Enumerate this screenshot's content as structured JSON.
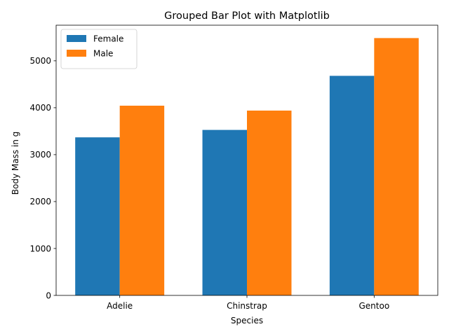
{
  "chart_data": {
    "type": "bar",
    "title": "Grouped Bar Plot with Matplotlib",
    "xlabel": "Species",
    "ylabel": "Body Mass in g",
    "categories": [
      "Adelie",
      "Chinstrap",
      "Gentoo"
    ],
    "series": [
      {
        "name": "Female",
        "values": [
          3368.8,
          3527.2,
          4679.7
        ],
        "color": "#1f77b4"
      },
      {
        "name": "Male",
        "values": [
          4043.5,
          3939.0,
          5484.8
        ],
        "color": "#ff7f0e"
      }
    ],
    "ylim": [
      0,
      5759
    ],
    "yticks": [
      0,
      1000,
      2000,
      3000,
      4000,
      5000
    ],
    "grid": false,
    "legend_position": "top-left"
  }
}
